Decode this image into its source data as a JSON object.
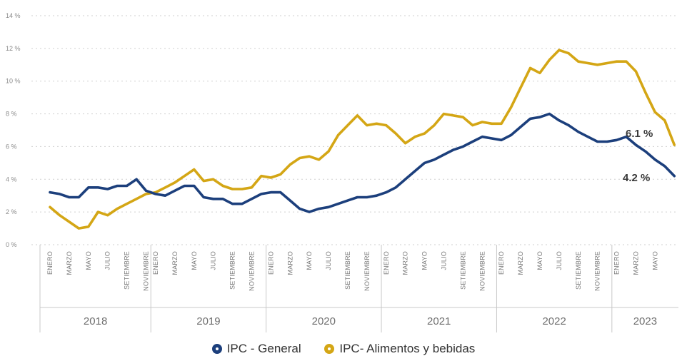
{
  "chart_data": {
    "type": "line",
    "y_ticks": [
      "0 %",
      "2 %",
      "4 %",
      "6 %",
      "8 %",
      "10 %",
      "12 %",
      "14 %"
    ],
    "ylim": [
      0,
      14
    ],
    "grid": true,
    "month_labels": [
      "ENERO",
      "MARZO",
      "MAYO",
      "JULIO",
      "SETIEMBRE",
      "NOVIEMBRE"
    ],
    "month_labels_2023": [
      "ENERO",
      "MARZO",
      "MAYO"
    ],
    "years": [
      "2018",
      "2019",
      "2020",
      "2021",
      "2022",
      "2023"
    ],
    "legend_position": "bottom",
    "series": [
      {
        "name": "IPC - General",
        "color": "#1c3f7c",
        "end_label": "4.2 %",
        "values": [
          3.2,
          3.1,
          2.9,
          2.9,
          3.5,
          3.5,
          3.4,
          3.6,
          3.6,
          4.0,
          3.3,
          3.1,
          3.0,
          3.3,
          3.6,
          3.6,
          2.9,
          2.8,
          2.8,
          2.5,
          2.5,
          2.8,
          3.1,
          3.2,
          3.2,
          2.7,
          2.2,
          2.0,
          2.2,
          2.3,
          2.5,
          2.7,
          2.9,
          2.9,
          3.0,
          3.2,
          3.5,
          4.0,
          4.5,
          5.0,
          5.2,
          5.5,
          5.8,
          6.0,
          6.3,
          6.6,
          6.5,
          6.4,
          6.7,
          7.2,
          7.7,
          7.8,
          8.0,
          7.6,
          7.3,
          6.9,
          6.6,
          6.3,
          6.3,
          6.4,
          6.6,
          6.1,
          5.7,
          5.2,
          4.8,
          4.2
        ]
      },
      {
        "name": "IPC- Alimentos y bebidas",
        "color": "#d4a615",
        "end_label": "6.1 %",
        "values": [
          2.3,
          1.8,
          1.4,
          1.0,
          1.1,
          2.0,
          1.8,
          2.2,
          2.5,
          2.8,
          3.1,
          3.2,
          3.5,
          3.8,
          4.2,
          4.6,
          3.9,
          4.0,
          3.6,
          3.4,
          3.4,
          3.5,
          4.2,
          4.1,
          4.3,
          4.9,
          5.3,
          5.4,
          5.2,
          5.7,
          6.7,
          7.3,
          7.9,
          7.3,
          7.4,
          7.3,
          6.8,
          6.2,
          6.6,
          6.8,
          7.3,
          8.0,
          7.9,
          7.8,
          7.3,
          7.5,
          7.4,
          7.4,
          8.4,
          9.6,
          10.8,
          10.5,
          11.3,
          11.9,
          11.7,
          11.2,
          11.1,
          11.0,
          11.1,
          11.2,
          11.2,
          10.6,
          9.3,
          8.1,
          7.6,
          6.1
        ]
      }
    ]
  }
}
